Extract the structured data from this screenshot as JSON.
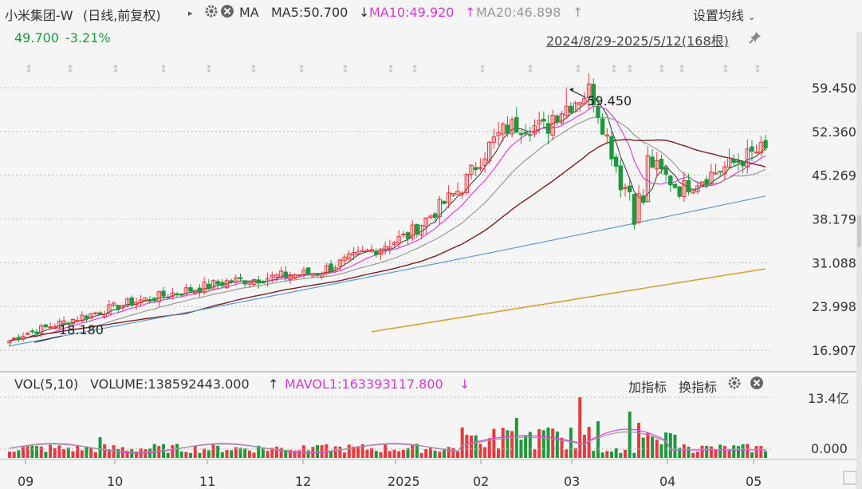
{
  "header": {
    "stock_name": "小米集团-W",
    "period_adjust": "(日线,前复权)",
    "ma_label": "MA",
    "ma5_label": "MA5:50.700",
    "ma5_arrow": "↓",
    "ma10_label": "MA10:49.920",
    "ma10_arrow": "↑",
    "ma20_label": "MA20:46.898",
    "ma20_arrow": "↑",
    "settings_label": "设置均线",
    "price": "49.700",
    "change_pct": "-3.21%",
    "date_range": "2024/8/29-2025/5/12(168根)"
  },
  "colors": {
    "up": "#e8383d",
    "down": "#1a9a3a",
    "ma5": "#333333",
    "ma10": "#e040e0",
    "ma20": "#999999",
    "ma60": "#7a1f1f",
    "ma120": "#5b9bd5",
    "ma250": "#d4a23a",
    "grid": "#b8b8b8"
  },
  "price_axis": [
    "59.450",
    "52.360",
    "45.269",
    "38.179",
    "31.088",
    "23.998",
    "16.907"
  ],
  "annotations": {
    "high": "59.450",
    "low": "18.180"
  },
  "volume_panel": {
    "vol_label": "VOL(5,10)",
    "volume_label": "VOLUME:138592443.000",
    "volume_arrow": "↑",
    "mavol_label": "MAVOL1:163393117.800",
    "mavol_arrow": "↓",
    "add_indicator": "加指标",
    "switch_indicator": "换指标",
    "axis_top": "13.4亿",
    "axis_bottom": "0.000"
  },
  "x_axis": [
    "09",
    "10",
    "11",
    "12",
    "2025",
    "02",
    "03",
    "04",
    "05"
  ],
  "chart_data": {
    "type": "candlestick",
    "title": "小米集团-W",
    "ylim": [
      16.907,
      59.45
    ],
    "price_path_keypoints": [
      {
        "month": "2024-08-29",
        "close": 18.4
      },
      {
        "month": "2024-09",
        "close": 19.5
      },
      {
        "month": "2024-10",
        "close": 24.5
      },
      {
        "month": "2024-11",
        "close": 28.0
      },
      {
        "month": "2024-12",
        "close": 29.5
      },
      {
        "month": "2025-01",
        "close": 35.5
      },
      {
        "month": "2025-02",
        "close": 50.0
      },
      {
        "month": "2025-03",
        "close": 56.5
      },
      {
        "month": "2025-04",
        "close": 43.0
      },
      {
        "month": "2025-05-12",
        "close": 49.7
      }
    ],
    "high": 59.45,
    "low": 18.18
  }
}
